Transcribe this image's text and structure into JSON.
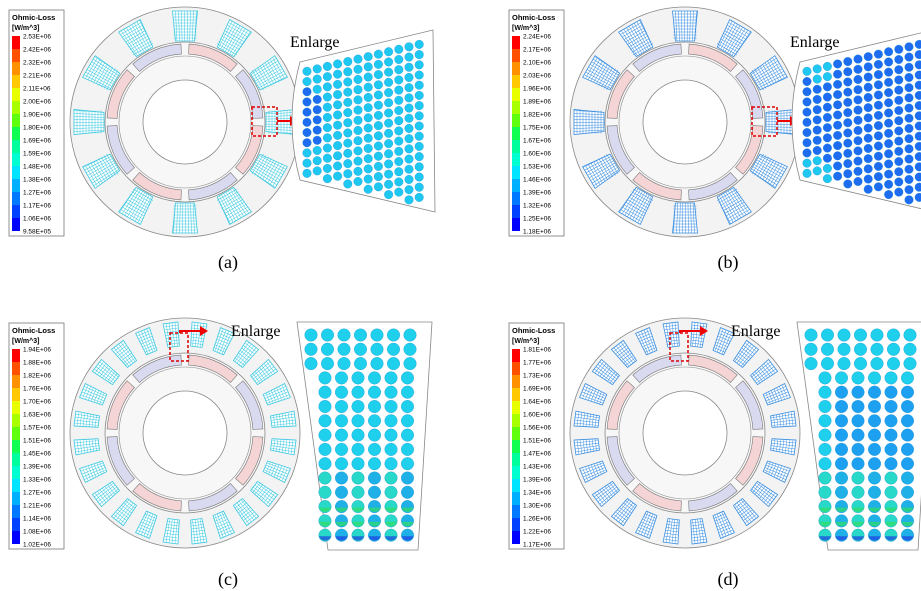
{
  "panels": [
    {
      "legend": {
        "title": "Ohmic-Loss",
        "unit": "[W/m^3]",
        "labels": [
          "2.53E+06",
          "2.42E+06",
          "2.32E+06",
          "2.21E+06",
          "2.11E+06",
          "2.00E+06",
          "1.90E+06",
          "1.80E+06",
          "1.69E+06",
          "1.59E+06",
          "1.48E+06",
          "1.38E+06",
          "1.27E+06",
          "1.17E+06",
          "1.06E+06",
          "9.58E+05"
        ]
      },
      "enlarge_label": "Enlarge",
      "caption": "(a)"
    },
    {
      "legend": {
        "title": "Ohmic-Loss",
        "unit": "[W/m^3]",
        "labels": [
          "2.24E+06",
          "2.17E+06",
          "2.10E+06",
          "2.03E+06",
          "1.96E+06",
          "1.89E+06",
          "1.82E+06",
          "1.75E+06",
          "1.67E+06",
          "1.60E+06",
          "1.53E+06",
          "1.46E+06",
          "1.39E+06",
          "1.32E+06",
          "1.25E+06",
          "1.18E+06"
        ]
      },
      "enlarge_label": "Enlarge",
      "caption": "(b)"
    },
    {
      "legend": {
        "title": "Ohmic-Loss",
        "unit": "[W/m^3]",
        "labels": [
          "1.94E+06",
          "1.88E+06",
          "1.82E+06",
          "1.76E+06",
          "1.70E+06",
          "1.63E+06",
          "1.57E+06",
          "1.51E+06",
          "1.45E+06",
          "1.39E+06",
          "1.33E+06",
          "1.27E+06",
          "1.21E+06",
          "1.14E+06",
          "1.08E+06",
          "1.02E+06"
        ]
      },
      "enlarge_label": "Enlarge",
      "caption": "(c)"
    },
    {
      "legend": {
        "title": "Ohmic-Loss",
        "unit": "[W/m^3]",
        "labels": [
          "1.81E+06",
          "1.77E+06",
          "1.73E+06",
          "1.69E+06",
          "1.64E+06",
          "1.60E+06",
          "1.56E+06",
          "1.51E+06",
          "1.47E+06",
          "1.43E+06",
          "1.39E+06",
          "1.34E+06",
          "1.30E+06",
          "1.26E+06",
          "1.22E+06",
          "1.17E+06"
        ]
      },
      "enlarge_label": "Enlarge",
      "caption": "(d)"
    }
  ]
}
